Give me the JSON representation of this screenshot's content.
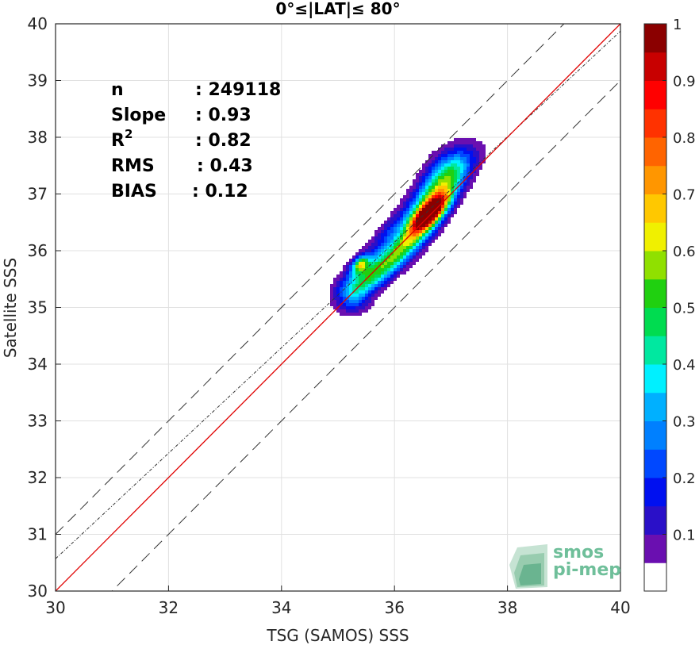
{
  "chart_data": {
    "type": "contour",
    "title": "0°≤|LAT|≤ 80°",
    "xlabel": "TSG (SAMOS) SSS",
    "ylabel": "Satellite SSS",
    "xlim": [
      30,
      40
    ],
    "ylim": [
      30,
      40
    ],
    "xticks": [
      "30",
      "32",
      "34",
      "36",
      "38",
      "40"
    ],
    "yticks": [
      "30",
      "31",
      "32",
      "33",
      "34",
      "35",
      "36",
      "37",
      "38",
      "39",
      "40"
    ],
    "grid": true,
    "stats": [
      {
        "label": "n",
        "value": ": 249118"
      },
      {
        "label": "Slope",
        "value": ": 0.93"
      },
      {
        "label": "R",
        "sup": "2",
        "value": ": 0.82"
      },
      {
        "label": "RMS",
        "value": ": 0.43"
      },
      {
        "label": "BIAS",
        "value": ": 0.12"
      }
    ],
    "lines": {
      "one_to_one": {
        "slope": 1.0,
        "intercept": 0.0,
        "color": "#e00000"
      },
      "fit": {
        "slope": 0.93,
        "intercept": 2.67,
        "color": "#333333"
      },
      "bounds": [
        {
          "slope": 1.0,
          "intercept": 1.0
        },
        {
          "slope": 1.0,
          "intercept": -1.0
        }
      ]
    },
    "density_peaks": [
      {
        "x": 36.62,
        "y": 36.65,
        "level": 1.0
      },
      {
        "x": 35.4,
        "y": 35.75,
        "level": 0.62
      }
    ],
    "colorbar": {
      "range": [
        0,
        1
      ],
      "ticks": [
        "0.1",
        "0.2",
        "0.3",
        "0.4",
        "0.5",
        "0.6",
        "0.7",
        "0.8",
        "0.9",
        "1"
      ],
      "colors": [
        "#ffffff",
        "#6a0fb0",
        "#2a10c8",
        "#0010f0",
        "#0048ff",
        "#0080ff",
        "#00b0ff",
        "#00f0ff",
        "#00e8a0",
        "#00dc50",
        "#20d010",
        "#90e000",
        "#f0f000",
        "#ffc800",
        "#ff9600",
        "#ff6400",
        "#ff3200",
        "#ff0000",
        "#c80000",
        "#8b0000"
      ]
    }
  },
  "watermark": {
    "line1": "smos",
    "line2": "pi-mep",
    "color": "#6fbf9a"
  }
}
